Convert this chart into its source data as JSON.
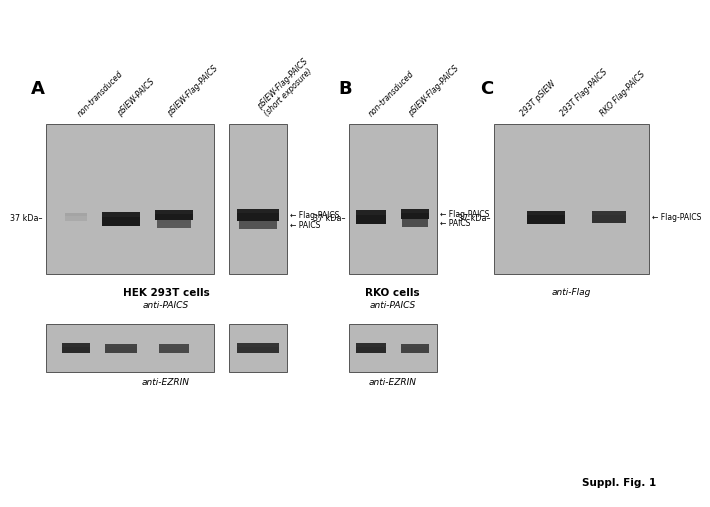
{
  "white_bg": "#ffffff",
  "gel_color": "#b8b8b8",
  "dark_band": "#1a1a1a",
  "medium_band": "#333333",
  "light_band": "#999999",
  "panel_A": {
    "label": "A",
    "col_labels": [
      "non-transduced",
      "pSIEW-PAICS",
      "pSIEW-Flag-PAICS",
      "pSIEW-Flag-PAICS\n(short exposure)"
    ],
    "cell_label": "HEK 293T cells",
    "antibody_label": "anti-PAICS",
    "ezrin_label": "anti-EZRIN",
    "kda_label": "37 kDa–",
    "band_annotations": [
      "← Flag-PAICS",
      "← PAICS"
    ]
  },
  "panel_B": {
    "label": "B",
    "col_labels": [
      "non-transduced",
      "pSIEW-Flag-PAICS"
    ],
    "cell_label": "RKO cells",
    "antibody_label": "anti-PAICS",
    "ezrin_label": "anti-EZRIN",
    "kda_label": "37 kDa–",
    "band_annotations": [
      "← Flag-PAICS",
      "← PAICS"
    ]
  },
  "panel_C": {
    "label": "C",
    "col_labels": [
      "293T pSIEW",
      "293T Flag-PAICS",
      "RKO Flag-PAICS"
    ],
    "antibody_label": "anti-Flag",
    "kda_label": "37 kDa–",
    "band_annotation": "← Flag-PAICS"
  },
  "suppl_label": "Suppl. Fig. 1"
}
